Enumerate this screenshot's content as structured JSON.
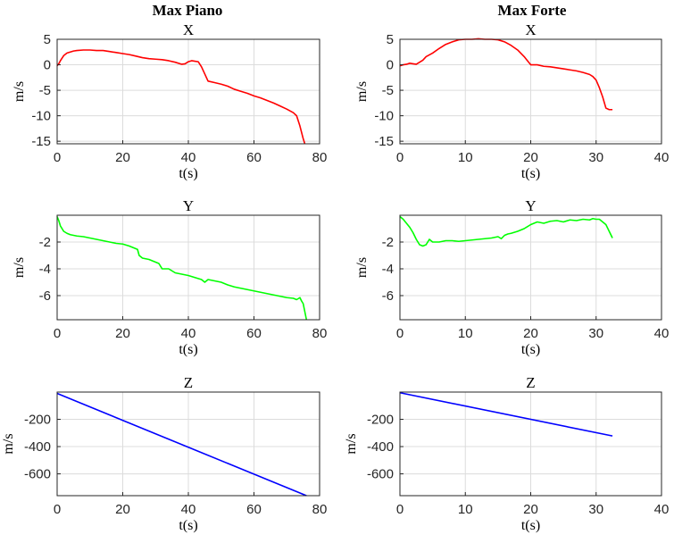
{
  "column_titles": [
    "Max Piano",
    "Max Forte"
  ],
  "chart_data": [
    {
      "type": "line",
      "column": "Max Piano",
      "title": "X",
      "xlabel": "t(s)",
      "ylabel": "m/s",
      "xlim": [
        0,
        80
      ],
      "ylim": [
        -15.5,
        5
      ],
      "xticks": [
        0,
        20,
        40,
        60,
        80
      ],
      "yticks": [
        5,
        0,
        -5,
        -10,
        -15
      ],
      "grid": true,
      "series": [
        {
          "color": "#ff0000",
          "x": [
            0,
            0.5,
            1,
            2,
            3,
            4,
            5,
            6,
            8,
            10,
            12,
            14,
            16,
            18,
            20,
            22,
            24,
            26,
            28,
            30,
            32,
            34,
            36,
            38,
            39,
            40,
            41,
            42,
            43,
            44,
            45,
            46,
            48,
            50,
            52,
            54,
            56,
            58,
            60,
            62,
            64,
            66,
            68,
            70,
            72,
            73,
            74,
            75,
            75.5
          ],
          "y": [
            -0.2,
            0.2,
            0.8,
            1.8,
            2.3,
            2.5,
            2.7,
            2.8,
            2.9,
            2.9,
            2.8,
            2.8,
            2.6,
            2.4,
            2.2,
            2.0,
            1.7,
            1.4,
            1.2,
            1.1,
            1.0,
            0.8,
            0.5,
            0.1,
            0.2,
            0.6,
            0.8,
            0.7,
            0.6,
            -0.4,
            -1.8,
            -3.2,
            -3.5,
            -3.8,
            -4.2,
            -4.8,
            -5.2,
            -5.6,
            -6.1,
            -6.5,
            -7.0,
            -7.5,
            -8.1,
            -8.7,
            -9.4,
            -10.0,
            -12.0,
            -14.5,
            -15.5
          ]
        }
      ]
    },
    {
      "type": "line",
      "column": "Max Forte",
      "title": "X",
      "xlabel": "t(s)",
      "ylabel": "m/s",
      "xlim": [
        0,
        40
      ],
      "ylim": [
        -15.5,
        5
      ],
      "xticks": [
        0,
        10,
        20,
        30,
        40
      ],
      "yticks": [
        5,
        0,
        -5,
        -10,
        -15
      ],
      "grid": true,
      "series": [
        {
          "color": "#ff0000",
          "x": [
            0,
            0.5,
            1,
            1.5,
            2,
            2.5,
            3,
            3.5,
            4,
            5,
            6,
            7,
            8,
            9,
            10,
            11,
            12,
            13,
            14,
            15,
            16,
            17,
            18,
            19,
            19.5,
            20,
            21,
            22,
            23,
            24,
            25,
            26,
            27,
            28,
            29,
            29.5,
            30,
            30.5,
            31,
            31.5,
            32,
            32.5
          ],
          "y": [
            -0.2,
            0,
            0.1,
            0.3,
            0.2,
            0.1,
            0.5,
            0.9,
            1.6,
            2.3,
            3.2,
            4.0,
            4.5,
            4.9,
            5.0,
            5.0,
            5.1,
            5.0,
            5.0,
            4.9,
            4.5,
            3.8,
            2.9,
            1.6,
            0.8,
            0.0,
            0.0,
            -0.3,
            -0.4,
            -0.6,
            -0.8,
            -1.0,
            -1.2,
            -1.5,
            -1.9,
            -2.3,
            -3.0,
            -4.5,
            -6.3,
            -8.5,
            -8.8,
            -8.8
          ]
        }
      ]
    },
    {
      "type": "line",
      "column": "Max Piano",
      "title": "Y",
      "xlabel": "t(s)",
      "ylabel": "m/s",
      "xlim": [
        0,
        80
      ],
      "ylim": [
        -7.8,
        0
      ],
      "xticks": [
        0,
        20,
        40,
        60,
        80
      ],
      "yticks": [
        -2,
        -4,
        -6
      ],
      "grid": true,
      "series": [
        {
          "color": "#00ff00",
          "x": [
            0,
            0.5,
            1,
            2,
            3,
            4,
            6,
            8,
            10,
            12,
            14,
            16,
            18,
            20,
            22,
            23,
            24,
            24.5,
            25,
            26,
            28,
            30,
            31,
            32,
            34,
            36,
            38,
            40,
            42,
            44,
            45,
            46,
            48,
            50,
            52,
            54,
            56,
            58,
            60,
            62,
            64,
            66,
            68,
            70,
            72,
            73,
            74,
            74.5,
            75,
            75.5,
            76
          ],
          "y": [
            -0.1,
            -0.4,
            -0.8,
            -1.2,
            -1.35,
            -1.45,
            -1.55,
            -1.6,
            -1.7,
            -1.8,
            -1.9,
            -2.0,
            -2.1,
            -2.15,
            -2.3,
            -2.4,
            -2.5,
            -2.55,
            -3.0,
            -3.2,
            -3.3,
            -3.5,
            -3.6,
            -4.0,
            -4.0,
            -4.3,
            -4.4,
            -4.5,
            -4.65,
            -4.8,
            -5.0,
            -4.8,
            -4.9,
            -5.0,
            -5.2,
            -5.35,
            -5.45,
            -5.55,
            -5.65,
            -5.75,
            -5.85,
            -5.95,
            -6.05,
            -6.15,
            -6.2,
            -6.3,
            -6.15,
            -6.4,
            -6.6,
            -7.2,
            -7.8
          ]
        }
      ]
    },
    {
      "type": "line",
      "column": "Max Forte",
      "title": "Y",
      "xlabel": "t(s)",
      "ylabel": "m/s",
      "xlim": [
        0,
        40
      ],
      "ylim": [
        -7.8,
        0
      ],
      "xticks": [
        0,
        10,
        20,
        30,
        40
      ],
      "yticks": [
        -2,
        -4,
        -6
      ],
      "grid": true,
      "series": [
        {
          "color": "#00ff00",
          "x": [
            0,
            0.5,
            1,
            1.5,
            2,
            2.5,
            3,
            3.5,
            4,
            4.5,
            5,
            6,
            7,
            8,
            9,
            10,
            11,
            12,
            13,
            14,
            15,
            15.5,
            16,
            16.5,
            17,
            18,
            19,
            20,
            20.5,
            21,
            22,
            23,
            24,
            25,
            26,
            27,
            28,
            29,
            29.5,
            30,
            30.5,
            31,
            31.5,
            32,
            32.5
          ],
          "y": [
            -0.1,
            -0.3,
            -0.6,
            -0.9,
            -1.3,
            -1.8,
            -2.2,
            -2.3,
            -2.2,
            -1.8,
            -2.0,
            -2.0,
            -1.9,
            -1.9,
            -1.95,
            -1.9,
            -1.85,
            -1.8,
            -1.75,
            -1.7,
            -1.6,
            -1.75,
            -1.5,
            -1.4,
            -1.35,
            -1.2,
            -1.0,
            -0.7,
            -0.6,
            -0.5,
            -0.6,
            -0.45,
            -0.4,
            -0.5,
            -0.35,
            -0.4,
            -0.3,
            -0.35,
            -0.25,
            -0.3,
            -0.3,
            -0.5,
            -0.7,
            -1.2,
            -1.7
          ]
        }
      ]
    },
    {
      "type": "line",
      "column": "Max Piano",
      "title": "Z",
      "xlabel": "t(s)",
      "ylabel": "m/s",
      "xlim": [
        0,
        80
      ],
      "ylim": [
        -760,
        0
      ],
      "xticks": [
        0,
        20,
        40,
        60,
        80
      ],
      "yticks": [
        -200,
        -400,
        -600
      ],
      "grid": true,
      "series": [
        {
          "color": "#0000ff",
          "x": [
            0,
            76
          ],
          "y": [
            -10,
            -760
          ]
        }
      ]
    },
    {
      "type": "line",
      "column": "Max Forte",
      "title": "Z",
      "xlabel": "t(s)",
      "ylabel": "m/s",
      "xlim": [
        0,
        40
      ],
      "ylim": [
        -760,
        0
      ],
      "xticks": [
        0,
        10,
        20,
        30,
        40
      ],
      "yticks": [
        -200,
        -400,
        -600
      ],
      "grid": true,
      "series": [
        {
          "color": "#0000ff",
          "x": [
            0,
            32.5
          ],
          "y": [
            -5,
            -322
          ]
        }
      ]
    }
  ]
}
